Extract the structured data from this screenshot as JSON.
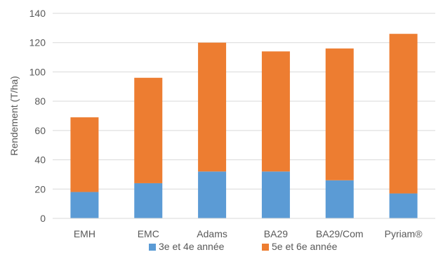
{
  "chart_data": {
    "type": "bar",
    "stacked": true,
    "categories": [
      "EMH",
      "EMC",
      "Adams",
      "BA29",
      "BA29/Com",
      "Pyriam®"
    ],
    "series": [
      {
        "name": "3e et 4e année",
        "color": "#5B9BD5",
        "values": [
          18,
          24,
          32,
          32,
          26,
          17
        ]
      },
      {
        "name": "5e et 6e année",
        "color": "#ED7D31",
        "values": [
          51,
          72,
          88,
          82,
          90,
          109
        ]
      }
    ],
    "ylabel": "Rendement (T/ha)",
    "xlabel": "",
    "ylim": [
      0,
      140
    ],
    "yticks": [
      0,
      20,
      40,
      60,
      80,
      100,
      120,
      140
    ],
    "grid": true,
    "legend": "bottom"
  }
}
